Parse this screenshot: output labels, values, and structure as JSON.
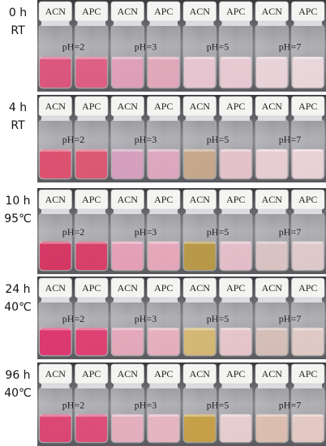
{
  "rows": [
    {
      "time": "0 h",
      "condition": "RT",
      "groups": [
        {
          "ph": "pH=2",
          "vials": [
            "ACN",
            "APC"
          ]
        },
        {
          "ph": "pH=3",
          "vials": [
            "ACN",
            "APC"
          ]
        },
        {
          "ph": "pH=5",
          "vials": [
            "ACN",
            "APC"
          ]
        },
        {
          "ph": "pH=7",
          "vials": [
            "ACN",
            "APC"
          ]
        }
      ]
    },
    {
      "time": "4 h",
      "condition": "RT",
      "groups": [
        {
          "ph": "pH=2",
          "vials": [
            "ACN",
            "APC"
          ]
        },
        {
          "ph": "pH=3",
          "vials": [
            "ACN",
            "APC"
          ]
        },
        {
          "ph": "pH=5",
          "vials": [
            "ACN",
            "APC"
          ]
        },
        {
          "ph": "pH=7",
          "vials": [
            "ACN",
            "APC"
          ]
        }
      ]
    },
    {
      "time": "10 h",
      "condition": "95℃",
      "groups": [
        {
          "ph": "pH=2",
          "vials": [
            "ACN",
            "APC"
          ]
        },
        {
          "ph": "pH=3",
          "vials": [
            "ACN",
            "APC"
          ]
        },
        {
          "ph": "pH=5",
          "vials": [
            "ACN",
            "APC"
          ]
        },
        {
          "ph": "pH=7",
          "vials": [
            "ACN",
            "APC"
          ]
        }
      ]
    },
    {
      "time": "24 h",
      "condition": "40℃",
      "groups": [
        {
          "ph": "pH=2",
          "vials": [
            "ACN",
            "APC"
          ]
        },
        {
          "ph": "pH=3",
          "vials": [
            "ACN",
            "APC"
          ]
        },
        {
          "ph": "pH=5",
          "vials": [
            "ACN",
            "APC"
          ]
        },
        {
          "ph": "pH=7",
          "vials": [
            "ACN",
            "APC"
          ]
        }
      ]
    },
    {
      "time": "96 h",
      "condition": "40℃",
      "groups": [
        {
          "ph": "pH=2",
          "vials": [
            "ACN",
            "APC"
          ]
        },
        {
          "ph": "pH=3",
          "vials": [
            "ACN",
            "APC"
          ]
        },
        {
          "ph": "pH=5",
          "vials": [
            "ACN",
            "APC"
          ]
        },
        {
          "ph": "pH=7",
          "vials": [
            "ACN",
            "APC"
          ]
        }
      ]
    }
  ]
}
